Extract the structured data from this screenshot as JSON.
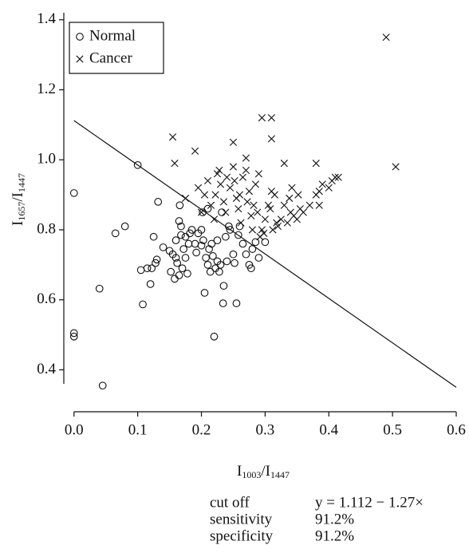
{
  "chart_data": {
    "type": "scatter",
    "xlabel": {
      "parts": [
        "I",
        "1003",
        "/I",
        "1447"
      ]
    },
    "ylabel": {
      "parts": [
        "I",
        "1657",
        "/I",
        "1447"
      ]
    },
    "xlim": [
      -0.016,
      0.6
    ],
    "ylim": [
      0.36,
      1.42
    ],
    "xticks": [
      {
        "value": 0,
        "label": "0.0"
      },
      0.1,
      0.2,
      0.3,
      0.4,
      0.5,
      0.6
    ],
    "yticks": [
      0.4,
      0.6,
      0.8,
      {
        "value": 1,
        "label": "1.0"
      },
      1.2,
      1.4
    ],
    "legend_position": "upper left",
    "series": [
      {
        "name": "Normal",
        "marker": "circle",
        "color": "#111111",
        "x": [
          0.0,
          0.0,
          0.0,
          0.04,
          0.045,
          0.065,
          0.08,
          0.1,
          0.105,
          0.108,
          0.115,
          0.12,
          0.122,
          0.125,
          0.128,
          0.13,
          0.132,
          0.14,
          0.15,
          0.152,
          0.155,
          0.158,
          0.16,
          0.16,
          0.162,
          0.165,
          0.165,
          0.166,
          0.168,
          0.17,
          0.172,
          0.175,
          0.175,
          0.178,
          0.18,
          0.182,
          0.185,
          0.19,
          0.192,
          0.195,
          0.2,
          0.2,
          0.203,
          0.205,
          0.207,
          0.21,
          0.212,
          0.214,
          0.216,
          0.218,
          0.22,
          0.222,
          0.225,
          0.225,
          0.228,
          0.23,
          0.232,
          0.234,
          0.235,
          0.238,
          0.24,
          0.243,
          0.25,
          0.252,
          0.255,
          0.258,
          0.26,
          0.265,
          0.27,
          0.275,
          0.278,
          0.28,
          0.285,
          0.29,
          0.3,
          0.202,
          0.21,
          0.245,
          0.168
        ],
        "y": [
          0.905,
          0.505,
          0.495,
          0.632,
          0.355,
          0.79,
          0.81,
          0.985,
          0.685,
          0.587,
          0.69,
          0.645,
          0.69,
          0.78,
          0.705,
          0.715,
          0.88,
          0.75,
          0.74,
          0.68,
          0.73,
          0.66,
          0.77,
          0.72,
          0.705,
          0.67,
          0.825,
          0.87,
          0.81,
          0.69,
          0.745,
          0.72,
          0.78,
          0.675,
          0.76,
          0.79,
          0.8,
          0.76,
          0.735,
          0.79,
          0.8,
          0.755,
          0.77,
          0.62,
          0.72,
          0.7,
          0.745,
          0.68,
          0.76,
          0.725,
          0.495,
          0.69,
          0.77,
          0.71,
          0.68,
          0.7,
          0.85,
          0.59,
          0.64,
          0.78,
          0.71,
          0.81,
          0.73,
          0.705,
          0.59,
          0.785,
          0.81,
          0.76,
          0.73,
          0.7,
          0.69,
          0.745,
          0.765,
          0.72,
          0.765,
          0.85,
          0.86,
          0.8,
          0.785
        ]
      },
      {
        "name": "Cancer",
        "marker": "cross",
        "color": "#111111",
        "x": [
          0.155,
          0.158,
          0.19,
          0.25,
          0.295,
          0.31,
          0.31,
          0.33,
          0.38,
          0.49,
          0.505,
          0.175,
          0.195,
          0.2,
          0.205,
          0.21,
          0.215,
          0.22,
          0.222,
          0.225,
          0.228,
          0.23,
          0.235,
          0.238,
          0.24,
          0.245,
          0.25,
          0.252,
          0.255,
          0.258,
          0.26,
          0.262,
          0.265,
          0.27,
          0.27,
          0.272,
          0.275,
          0.278,
          0.28,
          0.282,
          0.285,
          0.288,
          0.29,
          0.292,
          0.295,
          0.298,
          0.3,
          0.305,
          0.308,
          0.31,
          0.312,
          0.315,
          0.318,
          0.32,
          0.325,
          0.33,
          0.335,
          0.338,
          0.34,
          0.342,
          0.345,
          0.35,
          0.352,
          0.355,
          0.36,
          0.37,
          0.38,
          0.385,
          0.39,
          0.4,
          0.405,
          0.41,
          0.415,
          0.385
        ],
        "y": [
          1.065,
          0.99,
          1.025,
          1.05,
          1.12,
          1.12,
          1.06,
          0.99,
          0.99,
          1.35,
          0.98,
          0.89,
          0.92,
          0.85,
          0.9,
          0.94,
          0.87,
          0.83,
          0.9,
          0.96,
          0.97,
          0.93,
          0.88,
          0.85,
          0.95,
          0.92,
          0.98,
          0.94,
          0.89,
          0.86,
          0.9,
          0.82,
          0.95,
          0.97,
          1.005,
          0.88,
          0.91,
          0.84,
          0.8,
          0.87,
          0.93,
          0.85,
          0.96,
          0.78,
          0.8,
          0.79,
          0.83,
          0.87,
          0.86,
          0.91,
          0.8,
          0.9,
          0.82,
          0.81,
          0.83,
          0.87,
          0.82,
          0.89,
          0.85,
          0.92,
          0.84,
          0.83,
          0.9,
          0.86,
          0.85,
          0.87,
          0.9,
          0.87,
          0.93,
          0.92,
          0.94,
          0.95,
          0.95,
          0.91
        ]
      }
    ],
    "cutoff_line": {
      "x": [
        0,
        0.6
      ],
      "y": [
        1.112,
        0.35
      ]
    },
    "summary": [
      [
        "cut off",
        "y = 1.112 − 1.27×"
      ],
      [
        "sensitivity",
        "91.2%"
      ],
      [
        "specificity",
        "91.2%"
      ]
    ]
  }
}
